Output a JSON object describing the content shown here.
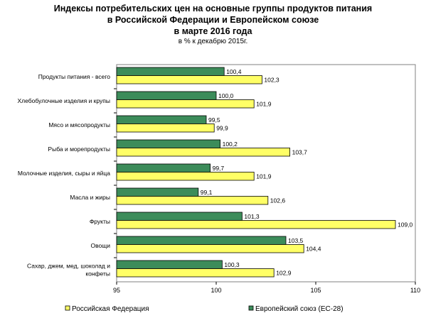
{
  "chart_data": {
    "type": "bar",
    "orientation": "horizontal",
    "title_lines": [
      "Индексы потребительских цен на основные группы продуктов питания",
      "в Российской Федерации и Европейском союзе",
      "в марте 2016 года"
    ],
    "subtitle": "в % к декабрю 2015г.",
    "categories": [
      [
        "Продукты питания - всего"
      ],
      [
        "Хлебобулочные изделия и крупы"
      ],
      [
        "Мясо и мясопродукты"
      ],
      [
        "Рыба и морепродукты"
      ],
      [
        "Молочные изделия, сыры и яйца"
      ],
      [
        "Масла и жиры"
      ],
      [
        "Фрукты"
      ],
      [
        "Овощи"
      ],
      [
        "Сахар, джем, мед, шоколад и",
        "конфеты"
      ]
    ],
    "series": [
      {
        "name": "Европейский союз (ЕС-28)",
        "color": "#3c8c5a",
        "values": [
          100.4,
          100.0,
          99.5,
          100.2,
          99.7,
          99.1,
          101.3,
          103.5,
          100.3
        ],
        "labels": [
          "100,4",
          "100,0",
          "99,5",
          "100,2",
          "99,7",
          "99,1",
          "101,3",
          "103,5",
          "100,3"
        ]
      },
      {
        "name": "Российская Федерация",
        "color": "#ffff66",
        "values": [
          102.3,
          101.9,
          99.9,
          103.7,
          101.9,
          102.6,
          109.0,
          104.4,
          102.9
        ],
        "labels": [
          "102,3",
          "101,9",
          "99,9",
          "103,7",
          "101,9",
          "102,6",
          "109,0",
          "104,4",
          "102,9"
        ]
      }
    ],
    "xlim": [
      95,
      110
    ],
    "xticks": [
      95,
      100,
      105,
      110
    ],
    "xtick_labels": [
      "95",
      "100",
      "105",
      "110"
    ],
    "legend_position": "bottom",
    "legend_order": [
      "Российская Федерация",
      "Европейский союз (ЕС-28)"
    ],
    "grid": false
  }
}
